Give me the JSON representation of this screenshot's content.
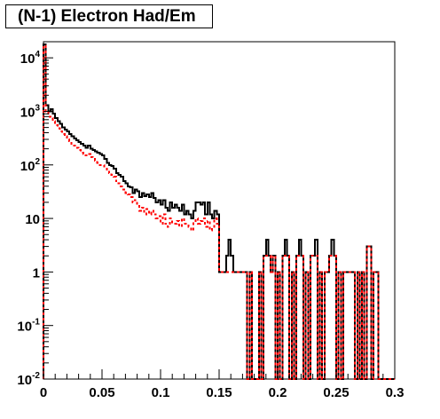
{
  "chart_data": {
    "type": "histogram",
    "title": "(N-1) Electron Had/Em",
    "xlabel": "",
    "ylabel": "",
    "xlim": [
      0,
      0.3
    ],
    "ylim": [
      0.01,
      20000
    ],
    "y_scale": "log",
    "grid": false,
    "legend": "none",
    "bin_width": 0.002,
    "x_ticks": [
      {
        "value": 0,
        "label": "0"
      },
      {
        "value": 0.05,
        "label": "0.05"
      },
      {
        "value": 0.1,
        "label": "0.1"
      },
      {
        "value": 0.15,
        "label": "0.15"
      },
      {
        "value": 0.2,
        "label": "0.2"
      },
      {
        "value": 0.25,
        "label": "0.25"
      },
      {
        "value": 0.3,
        "label": "0.3"
      }
    ],
    "y_ticks": [
      {
        "value": 0.01,
        "base": "10",
        "exp": "-2",
        "label": ""
      },
      {
        "value": 0.1,
        "base": "10",
        "exp": "-1",
        "label": ""
      },
      {
        "value": 1,
        "base": "",
        "exp": "",
        "label": "1"
      },
      {
        "value": 10,
        "base": "",
        "exp": "",
        "label": "10"
      },
      {
        "value": 100,
        "base": "10",
        "exp": "2",
        "label": ""
      },
      {
        "value": 1000,
        "base": "10",
        "exp": "3",
        "label": ""
      },
      {
        "value": 10000,
        "base": "10",
        "exp": "4",
        "label": ""
      }
    ],
    "series": [
      {
        "color": "#000000",
        "style": "solid",
        "bins": [
          [
            0.0,
            18000
          ],
          [
            0.002,
            1300
          ],
          [
            0.004,
            1000
          ],
          [
            0.006,
            1100
          ],
          [
            0.008,
            900
          ],
          [
            0.01,
            750
          ],
          [
            0.012,
            650
          ],
          [
            0.014,
            580
          ],
          [
            0.016,
            500
          ],
          [
            0.018,
            460
          ],
          [
            0.02,
            420
          ],
          [
            0.022,
            380
          ],
          [
            0.024,
            340
          ],
          [
            0.026,
            310
          ],
          [
            0.028,
            290
          ],
          [
            0.03,
            270
          ],
          [
            0.032,
            250
          ],
          [
            0.034,
            230
          ],
          [
            0.036,
            210
          ],
          [
            0.038,
            230
          ],
          [
            0.04,
            200
          ],
          [
            0.042,
            190
          ],
          [
            0.044,
            180
          ],
          [
            0.046,
            170
          ],
          [
            0.048,
            160
          ],
          [
            0.05,
            150
          ],
          [
            0.052,
            130
          ],
          [
            0.054,
            110
          ],
          [
            0.056,
            100
          ],
          [
            0.058,
            95
          ],
          [
            0.06,
            85
          ],
          [
            0.062,
            70
          ],
          [
            0.064,
            65
          ],
          [
            0.066,
            60
          ],
          [
            0.068,
            50
          ],
          [
            0.07,
            45
          ],
          [
            0.072,
            40
          ],
          [
            0.074,
            38
          ],
          [
            0.076,
            30
          ],
          [
            0.078,
            35
          ],
          [
            0.08,
            32
          ],
          [
            0.082,
            25
          ],
          [
            0.084,
            30
          ],
          [
            0.086,
            26
          ],
          [
            0.088,
            28
          ],
          [
            0.09,
            25
          ],
          [
            0.092,
            30
          ],
          [
            0.094,
            24
          ],
          [
            0.096,
            20
          ],
          [
            0.098,
            22
          ],
          [
            0.1,
            18
          ],
          [
            0.102,
            22
          ],
          [
            0.104,
            16
          ],
          [
            0.106,
            14
          ],
          [
            0.108,
            20
          ],
          [
            0.11,
            16
          ],
          [
            0.112,
            18
          ],
          [
            0.114,
            16
          ],
          [
            0.116,
            14
          ],
          [
            0.118,
            18
          ],
          [
            0.12,
            12
          ],
          [
            0.122,
            14
          ],
          [
            0.124,
            12
          ],
          [
            0.126,
            10
          ],
          [
            0.128,
            14
          ],
          [
            0.13,
            20
          ],
          [
            0.132,
            20
          ],
          [
            0.134,
            18
          ],
          [
            0.136,
            20
          ],
          [
            0.138,
            12
          ],
          [
            0.14,
            20
          ],
          [
            0.142,
            12
          ],
          [
            0.144,
            10
          ],
          [
            0.146,
            14
          ],
          [
            0.148,
            12
          ],
          [
            0.15,
            1
          ],
          [
            0.152,
            1
          ],
          [
            0.154,
            1
          ],
          [
            0.156,
            2
          ],
          [
            0.158,
            4
          ],
          [
            0.16,
            2
          ],
          [
            0.162,
            1
          ],
          [
            0.164,
            1
          ],
          [
            0.166,
            1
          ],
          [
            0.168,
            1
          ],
          [
            0.17,
            1
          ],
          [
            0.172,
            1
          ],
          [
            0.174,
            0
          ],
          [
            0.176,
            1
          ],
          [
            0.178,
            0
          ],
          [
            0.18,
            0
          ],
          [
            0.182,
            0
          ],
          [
            0.184,
            1
          ],
          [
            0.186,
            0
          ],
          [
            0.188,
            2
          ],
          [
            0.19,
            4
          ],
          [
            0.192,
            2
          ],
          [
            0.194,
            1
          ],
          [
            0.196,
            2
          ],
          [
            0.198,
            0
          ],
          [
            0.2,
            1
          ],
          [
            0.202,
            0
          ],
          [
            0.204,
            2
          ],
          [
            0.206,
            4
          ],
          [
            0.208,
            2
          ],
          [
            0.21,
            0
          ],
          [
            0.212,
            1
          ],
          [
            0.214,
            0
          ],
          [
            0.216,
            2
          ],
          [
            0.218,
            4
          ],
          [
            0.22,
            2
          ],
          [
            0.222,
            0
          ],
          [
            0.224,
            1
          ],
          [
            0.226,
            0
          ],
          [
            0.228,
            2
          ],
          [
            0.23,
            2
          ],
          [
            0.232,
            4
          ],
          [
            0.234,
            0
          ],
          [
            0.236,
            1
          ],
          [
            0.238,
            0
          ],
          [
            0.24,
            1
          ],
          [
            0.242,
            1
          ],
          [
            0.244,
            2
          ],
          [
            0.246,
            4
          ],
          [
            0.248,
            2
          ],
          [
            0.25,
            0
          ],
          [
            0.252,
            1
          ],
          [
            0.254,
            0
          ],
          [
            0.256,
            1
          ],
          [
            0.258,
            1
          ],
          [
            0.26,
            1
          ],
          [
            0.262,
            1
          ],
          [
            0.264,
            1
          ],
          [
            0.266,
            0
          ],
          [
            0.268,
            1
          ],
          [
            0.27,
            0
          ],
          [
            0.272,
            1
          ],
          [
            0.274,
            0
          ],
          [
            0.276,
            3
          ],
          [
            0.278,
            3
          ],
          [
            0.28,
            0
          ],
          [
            0.282,
            1
          ],
          [
            0.284,
            1
          ],
          [
            0.286,
            0
          ],
          [
            0.288,
            0
          ],
          [
            0.29,
            0
          ],
          [
            0.292,
            0
          ],
          [
            0.294,
            0
          ],
          [
            0.296,
            0
          ],
          [
            0.298,
            0
          ]
        ]
      },
      {
        "color": "#ff0000",
        "style": "dashed",
        "bins": [
          [
            0.0,
            17000
          ],
          [
            0.002,
            1000
          ],
          [
            0.004,
            800
          ],
          [
            0.006,
            750
          ],
          [
            0.008,
            650
          ],
          [
            0.01,
            550
          ],
          [
            0.012,
            480
          ],
          [
            0.014,
            420
          ],
          [
            0.016,
            380
          ],
          [
            0.018,
            340
          ],
          [
            0.02,
            300
          ],
          [
            0.022,
            280
          ],
          [
            0.024,
            250
          ],
          [
            0.026,
            230
          ],
          [
            0.028,
            210
          ],
          [
            0.03,
            190
          ],
          [
            0.032,
            170
          ],
          [
            0.034,
            160
          ],
          [
            0.036,
            150
          ],
          [
            0.038,
            160
          ],
          [
            0.04,
            140
          ],
          [
            0.042,
            130
          ],
          [
            0.044,
            120
          ],
          [
            0.046,
            110
          ],
          [
            0.048,
            100
          ],
          [
            0.05,
            100
          ],
          [
            0.052,
            90
          ],
          [
            0.054,
            75
          ],
          [
            0.056,
            70
          ],
          [
            0.058,
            65
          ],
          [
            0.06,
            60
          ],
          [
            0.062,
            50
          ],
          [
            0.064,
            45
          ],
          [
            0.066,
            40
          ],
          [
            0.068,
            35
          ],
          [
            0.07,
            30
          ],
          [
            0.072,
            28
          ],
          [
            0.074,
            25
          ],
          [
            0.076,
            20
          ],
          [
            0.078,
            22
          ],
          [
            0.08,
            18
          ],
          [
            0.082,
            14
          ],
          [
            0.084,
            16
          ],
          [
            0.086,
            12
          ],
          [
            0.088,
            15
          ],
          [
            0.09,
            12
          ],
          [
            0.092,
            14
          ],
          [
            0.094,
            12
          ],
          [
            0.096,
            10
          ],
          [
            0.098,
            11
          ],
          [
            0.1,
            8
          ],
          [
            0.102,
            12
          ],
          [
            0.104,
            8
          ],
          [
            0.106,
            7
          ],
          [
            0.108,
            10
          ],
          [
            0.11,
            8
          ],
          [
            0.112,
            8
          ],
          [
            0.114,
            9
          ],
          [
            0.116,
            7
          ],
          [
            0.118,
            10
          ],
          [
            0.12,
            8
          ],
          [
            0.122,
            8
          ],
          [
            0.124,
            7
          ],
          [
            0.126,
            6
          ],
          [
            0.128,
            9
          ],
          [
            0.13,
            10
          ],
          [
            0.132,
            8
          ],
          [
            0.134,
            9
          ],
          [
            0.136,
            10
          ],
          [
            0.138,
            7
          ],
          [
            0.14,
            9
          ],
          [
            0.142,
            6
          ],
          [
            0.144,
            7
          ],
          [
            0.146,
            10
          ],
          [
            0.148,
            8
          ],
          [
            0.15,
            1
          ],
          [
            0.152,
            1
          ],
          [
            0.154,
            1
          ],
          [
            0.156,
            1
          ],
          [
            0.158,
            1
          ],
          [
            0.16,
            1
          ],
          [
            0.162,
            1
          ],
          [
            0.164,
            1
          ],
          [
            0.166,
            1
          ],
          [
            0.168,
            1
          ],
          [
            0.17,
            1
          ],
          [
            0.172,
            1
          ],
          [
            0.174,
            0
          ],
          [
            0.176,
            1
          ],
          [
            0.178,
            0
          ],
          [
            0.18,
            0
          ],
          [
            0.182,
            0
          ],
          [
            0.184,
            1
          ],
          [
            0.186,
            0
          ],
          [
            0.188,
            2
          ],
          [
            0.19,
            2
          ],
          [
            0.192,
            2
          ],
          [
            0.194,
            1
          ],
          [
            0.196,
            2
          ],
          [
            0.198,
            0
          ],
          [
            0.2,
            1
          ],
          [
            0.202,
            0
          ],
          [
            0.204,
            2
          ],
          [
            0.206,
            2
          ],
          [
            0.208,
            2
          ],
          [
            0.21,
            0
          ],
          [
            0.212,
            1
          ],
          [
            0.214,
            0
          ],
          [
            0.216,
            2
          ],
          [
            0.218,
            2
          ],
          [
            0.22,
            2
          ],
          [
            0.222,
            0
          ],
          [
            0.224,
            1
          ],
          [
            0.226,
            0
          ],
          [
            0.228,
            2
          ],
          [
            0.23,
            2
          ],
          [
            0.232,
            2
          ],
          [
            0.234,
            0
          ],
          [
            0.236,
            1
          ],
          [
            0.238,
            0
          ],
          [
            0.24,
            1
          ],
          [
            0.242,
            1
          ],
          [
            0.244,
            2
          ],
          [
            0.246,
            2
          ],
          [
            0.248,
            2
          ],
          [
            0.25,
            0
          ],
          [
            0.252,
            1
          ],
          [
            0.254,
            0
          ],
          [
            0.256,
            1
          ],
          [
            0.258,
            1
          ],
          [
            0.26,
            1
          ],
          [
            0.262,
            1
          ],
          [
            0.264,
            1
          ],
          [
            0.266,
            0
          ],
          [
            0.268,
            1
          ],
          [
            0.27,
            0
          ],
          [
            0.272,
            1
          ],
          [
            0.274,
            0
          ],
          [
            0.276,
            3
          ],
          [
            0.278,
            3
          ],
          [
            0.28,
            0
          ],
          [
            0.282,
            1
          ],
          [
            0.284,
            1
          ],
          [
            0.286,
            0
          ],
          [
            0.288,
            0
          ],
          [
            0.29,
            0
          ],
          [
            0.292,
            0
          ],
          [
            0.294,
            0
          ],
          [
            0.296,
            0
          ],
          [
            0.298,
            0
          ]
        ]
      }
    ]
  }
}
